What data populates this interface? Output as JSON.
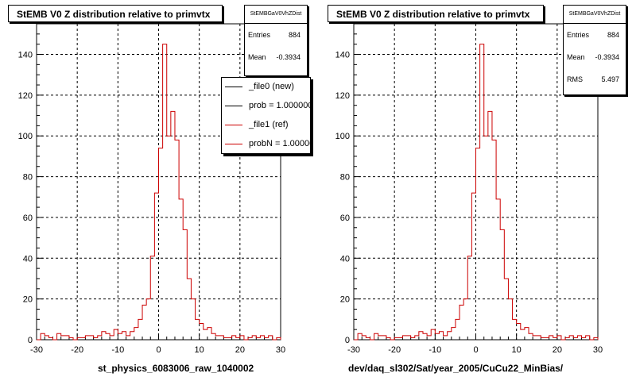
{
  "chart_data": [
    {
      "type": "histogram",
      "title": "StEMB V0 Z distribution relative to primvtx",
      "xlabel": "st_physics_6083006_raw_1040002",
      "ylabel": "",
      "xlim": [
        -30,
        30
      ],
      "ylim": [
        0,
        155
      ],
      "xticks": [
        "-30",
        "-20",
        "-10",
        "0",
        "10",
        "20",
        "30"
      ],
      "yticks": [
        "0",
        "20",
        "40",
        "60",
        "80",
        "100",
        "120",
        "140"
      ],
      "grid": true,
      "bin_width": 1,
      "series": [
        {
          "name": "_file1 (ref)",
          "color": "#cc0000",
          "bin_edges_start": -30,
          "values": [
            0,
            3,
            2,
            1,
            0,
            3,
            2,
            2,
            1,
            0,
            1,
            1,
            2,
            2,
            1,
            2,
            4,
            3,
            2,
            5,
            3,
            4,
            2,
            4,
            6,
            10,
            17,
            20,
            41,
            72,
            94,
            145,
            100,
            112,
            98,
            69,
            54,
            30,
            20,
            10,
            8,
            5,
            6,
            3,
            2,
            2,
            1,
            1,
            2,
            1,
            2,
            0,
            1,
            2,
            1,
            2,
            1,
            2,
            0,
            1
          ]
        }
      ],
      "legend": {
        "placement": "top-right",
        "entries": [
          {
            "label": "_file0 (new)",
            "color": "#000000"
          },
          {
            "label": "prob = 1.000000",
            "color": "#000000"
          },
          {
            "label": "_file1 (ref)",
            "color": "#cc0000"
          },
          {
            "label": "probN = 1.000000",
            "color": "#cc0000"
          }
        ]
      },
      "stats": {
        "name": "StEMBGaV0VhZDist",
        "rows": [
          {
            "key": "Entries",
            "value": "884"
          },
          {
            "key": "Mean",
            "value": "-0.3934"
          }
        ]
      }
    },
    {
      "type": "histogram",
      "title": "StEMB V0 Z distribution relative to primvtx",
      "xlabel": "dev/daq_sl302/Sat/year_2005/CuCu22_MinBias/",
      "ylabel": "",
      "xlim": [
        -30,
        30
      ],
      "ylim": [
        0,
        155
      ],
      "xticks": [
        "-30",
        "-20",
        "-10",
        "0",
        "10",
        "20",
        "30"
      ],
      "yticks": [
        "0",
        "20",
        "40",
        "60",
        "80",
        "100",
        "120",
        "140"
      ],
      "grid": true,
      "bin_width": 1,
      "series": [
        {
          "name": "",
          "color": "#cc0000",
          "bin_edges_start": -30,
          "values": [
            0,
            3,
            2,
            1,
            0,
            3,
            2,
            2,
            1,
            0,
            1,
            1,
            2,
            2,
            1,
            2,
            4,
            3,
            2,
            5,
            3,
            4,
            2,
            4,
            6,
            10,
            17,
            20,
            41,
            72,
            94,
            145,
            100,
            112,
            98,
            69,
            54,
            30,
            20,
            10,
            8,
            5,
            6,
            3,
            2,
            2,
            1,
            1,
            2,
            1,
            2,
            0,
            1,
            2,
            1,
            2,
            1,
            2,
            0,
            1
          ]
        }
      ],
      "stats": {
        "name": "StEMBGaV0VhZDist",
        "rows": [
          {
            "key": "Entries",
            "value": "884"
          },
          {
            "key": "Mean",
            "value": "-0.3934"
          },
          {
            "key": "RMS",
            "value": "5.497"
          }
        ]
      }
    }
  ]
}
